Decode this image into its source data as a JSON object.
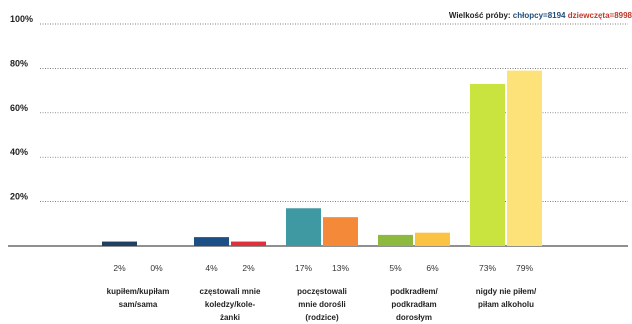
{
  "sample": {
    "label": "Wielkość próby:",
    "boys": "chłopcy=8194",
    "girls": "dziewczęta=8998"
  },
  "colors": {
    "boys_text": "#1f4e79",
    "girls_text": "#c0392b"
  },
  "chart_data": {
    "type": "bar",
    "title": "",
    "xlabel": "",
    "ylabel": "",
    "ylim": [
      0,
      100
    ],
    "yticks": [
      "20%",
      "40%",
      "60%",
      "80%",
      "100%"
    ],
    "grid": true,
    "categories": [
      [
        "kupiłem/kupiłam",
        "sam/sama"
      ],
      [
        "częstowali mnie",
        "koledzy/kole-",
        "żanki"
      ],
      [
        "poczęstowali",
        "mnie dorośli",
        "(rodzice)"
      ],
      [
        "podkradłem/",
        "podkradłam",
        "dorosłym"
      ],
      [
        "nigdy nie piłem/",
        "piłam alkoholu"
      ]
    ],
    "series": [
      {
        "name": "chłopcy",
        "values": [
          2,
          4,
          17,
          5,
          73
        ],
        "labels": [
          "2%",
          "4%",
          "17%",
          "5%",
          "73%"
        ],
        "colors": [
          "#1f3f63",
          "#1c4f86",
          "#3f99a3",
          "#8dba3e",
          "#c9e33f"
        ]
      },
      {
        "name": "dziewczęta",
        "values": [
          0,
          2,
          13,
          6,
          79
        ],
        "labels": [
          "0%",
          "2%",
          "13%",
          "6%",
          "79%"
        ],
        "colors": [
          "#b0b0b0",
          "#e0303c",
          "#f5893a",
          "#fbc344",
          "#fde279"
        ]
      }
    ]
  }
}
